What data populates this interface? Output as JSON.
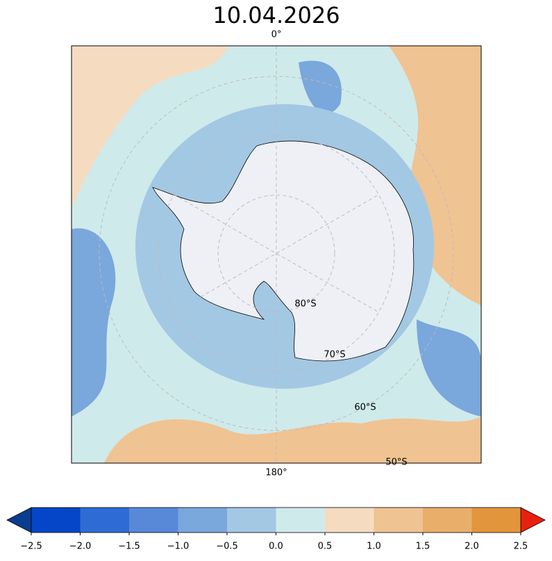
{
  "title": "10.04.2026",
  "map": {
    "labels": [
      "0°",
      "180°",
      "80°S",
      "70°S",
      "60°S",
      "50°S"
    ]
  },
  "colorbar": {
    "ticks": [
      {
        "value": -2.5,
        "label": "−2.5"
      },
      {
        "value": -2.0,
        "label": "−2.0"
      },
      {
        "value": -1.5,
        "label": "−1.5"
      },
      {
        "value": -1.0,
        "label": "−1.0"
      },
      {
        "value": -0.5,
        "label": "−0.5"
      },
      {
        "value": 0.0,
        "label": "0.0"
      },
      {
        "value": 0.5,
        "label": "0.5"
      },
      {
        "value": 1.0,
        "label": "1.0"
      },
      {
        "value": 1.5,
        "label": "1.5"
      },
      {
        "value": 2.0,
        "label": "2.0"
      },
      {
        "value": 2.5,
        "label": "2.5"
      }
    ],
    "colors": [
      "#0546c8",
      "#2e6bd5",
      "#5889d9",
      "#7aa7dc",
      "#a3c8e4",
      "#cfeaea",
      "#f5dcc0",
      "#f0c393",
      "#e8ae6a",
      "#e3953c"
    ],
    "under_color": "#0a3d8f",
    "over_color": "#e8210e"
  }
}
